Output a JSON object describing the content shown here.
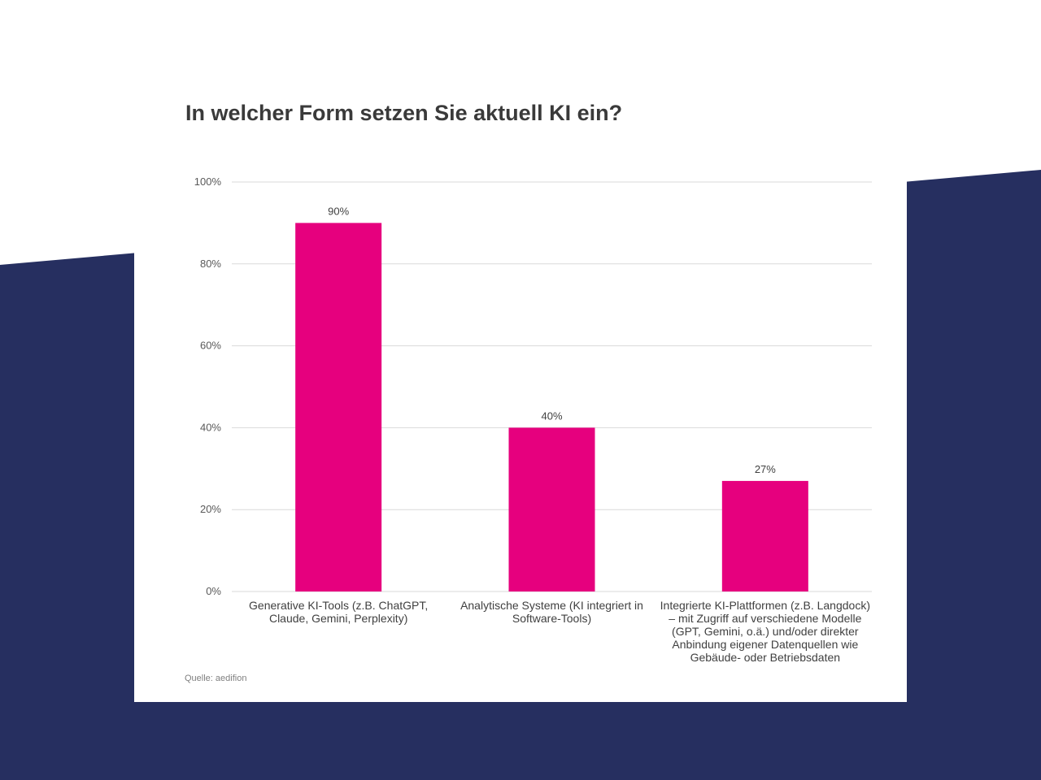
{
  "colors": {
    "background_shape": "#262f60",
    "bar": "#e6007e",
    "grid": "#d9d9d9",
    "card": "#ffffff"
  },
  "source": "Quelle: aedifion",
  "chart_data": {
    "type": "bar",
    "title": "In welcher Form setzen Sie aktuell KI ein?",
    "categories": [
      "Generative KI-Tools (z.B. ChatGPT, Claude, Gemini, Perplexity)",
      "Analytische Systeme (KI integriert in Software-Tools)",
      "Integrierte KI-Plattformen (z.B. Langdock) – mit Zugriff auf verschiedene Modelle (GPT, Gemini, o.ä.) und/oder direkter Anbindung eigener Datenquellen wie Gebäude- oder Betriebsdaten"
    ],
    "values": [
      90,
      40,
      27
    ],
    "data_labels": [
      "90%",
      "40%",
      "27%"
    ],
    "ylim": [
      0,
      100
    ],
    "yticks": [
      0,
      20,
      40,
      60,
      80,
      100
    ],
    "ytick_labels": [
      "0%",
      "20%",
      "40%",
      "60%",
      "80%",
      "100%"
    ],
    "xlabel": "",
    "ylabel": "",
    "grid": true,
    "legend": "none"
  }
}
